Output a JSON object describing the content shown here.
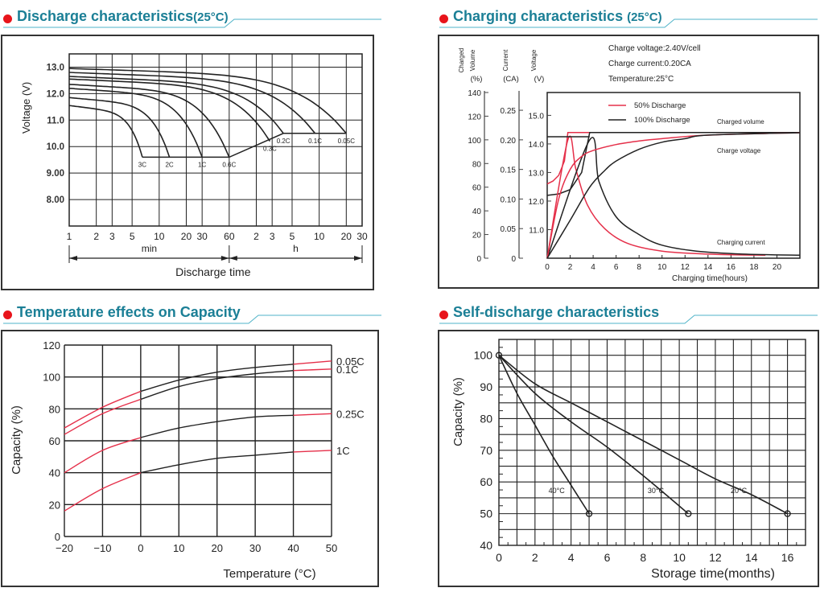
{
  "colors": {
    "title": "#1b7f96",
    "bullet": "#e8141b",
    "curve": "#222222",
    "curve_red": "#e5304a",
    "grid": "#222222"
  },
  "chart_data": [
    {
      "id": "discharge",
      "type": "line",
      "title": "Discharge characteristics",
      "title_suffix": "(25°C)",
      "xlabel": "Discharge time",
      "ylabel": "Voltage (V)",
      "x_scale": "log",
      "x_unit_labels": [
        "min",
        "h"
      ],
      "x_ticks_minutes": [
        1,
        2,
        3,
        5,
        10,
        20,
        30,
        60,
        120,
        180,
        300,
        600,
        1200,
        1800
      ],
      "x_tick_labels": [
        "1",
        "2",
        "3",
        "5",
        "10",
        "20",
        "30",
        "60",
        "2",
        "3",
        "5",
        "10",
        "20",
        "30"
      ],
      "y_ticks": [
        8.0,
        9.0,
        10.0,
        11.0,
        12.0,
        13.0
      ],
      "y_tick_labels": [
        "8.00",
        "9.00",
        "10.0",
        "11.0",
        "12.0",
        "13.0"
      ],
      "ylim": [
        7.0,
        13.5
      ],
      "grid": true,
      "series": [
        {
          "name": "3C",
          "start_v": 11.55,
          "end_time_min": 6.5,
          "cutoff_v": 9.6
        },
        {
          "name": "2C",
          "start_v": 11.85,
          "end_time_min": 13,
          "cutoff_v": 9.6
        },
        {
          "name": "1C",
          "start_v": 12.2,
          "end_time_min": 30,
          "cutoff_v": 9.6
        },
        {
          "name": "0.6C",
          "start_v": 12.35,
          "end_time_min": 60,
          "cutoff_v": 9.6
        },
        {
          "name": "0.3C",
          "start_v": 12.55,
          "end_time_min": 170,
          "cutoff_v": 10.2
        },
        {
          "name": "0.2C",
          "start_v": 12.65,
          "end_time_min": 240,
          "cutoff_v": 10.5
        },
        {
          "name": "0.1C",
          "start_v": 12.8,
          "end_time_min": 540,
          "cutoff_v": 10.5
        },
        {
          "name": "0.05C",
          "start_v": 12.95,
          "end_time_min": 1200,
          "cutoff_v": 10.5
        }
      ]
    },
    {
      "id": "charging",
      "type": "line",
      "title": "Charging characteristics",
      "title_suffix": "(25°C)",
      "xlabel": "Charging time(hours)",
      "x_ticks": [
        0,
        2,
        4,
        6,
        8,
        10,
        12,
        14,
        16,
        18,
        20
      ],
      "xlim": [
        0,
        22
      ],
      "axes": [
        {
          "label": [
            "Charged",
            "Volume"
          ],
          "unit": "(%)",
          "ticks": [
            0,
            20,
            40,
            60,
            80,
            100,
            120,
            140
          ],
          "range": [
            0,
            140
          ]
        },
        {
          "label": [
            "Current"
          ],
          "unit": "(CA)",
          "ticks": [
            0,
            0.05,
            0.1,
            0.15,
            0.2,
            0.25
          ],
          "tick_labels": [
            "0",
            "0.05",
            "0.10",
            "0.15",
            "0.20",
            "0.25"
          ],
          "range": [
            0,
            0.28
          ]
        },
        {
          "label": [
            "Voltage"
          ],
          "unit": "(V)",
          "ticks": [
            11.0,
            12.0,
            13.0,
            14.0,
            15.0
          ],
          "tick_labels": [
            "11.0",
            "12.0",
            "13.0",
            "14.0",
            "15.0"
          ],
          "range": [
            10.0,
            15.8
          ]
        }
      ],
      "conditions": [
        "Charge voltage:2.40V/cell",
        "Charge current:0.20CA",
        "Temperature:25°C"
      ],
      "legend": [
        {
          "name": "50% Discharge",
          "color": "#e5304a"
        },
        {
          "name": "100% Discharge",
          "color": "#222222"
        }
      ],
      "legend_position": "top-left",
      "annotations": [
        "Charged volume",
        "Charge voltage",
        "Charging current"
      ],
      "series": [
        {
          "name": "50% Discharge - voltage",
          "axis": 2,
          "x": [
            0,
            0.5,
            1,
            1.5,
            1.8,
            2,
            22
          ],
          "y": [
            12.6,
            12.7,
            12.9,
            13.4,
            14.4,
            14.4,
            14.4
          ],
          "color": "#e5304a"
        },
        {
          "name": "100% Discharge - voltage",
          "axis": 2,
          "x": [
            0,
            1,
            2,
            3,
            3.4,
            3.7,
            22
          ],
          "y": [
            12.2,
            12.25,
            12.4,
            13.0,
            13.8,
            14.4,
            14.4
          ],
          "color": "#222222"
        },
        {
          "name": "50% Discharge - current",
          "axis": 1,
          "x": [
            0,
            1.8,
            2.5,
            3.5,
            5,
            7,
            10,
            14,
            19
          ],
          "y": [
            0,
            0.2,
            0.15,
            0.09,
            0.05,
            0.025,
            0.012,
            0.007,
            0.005
          ],
          "color": "#e5304a"
        },
        {
          "name": "100% Discharge - current",
          "axis": 1,
          "x": [
            0,
            3.7,
            4.5,
            6,
            8,
            10,
            13,
            17,
            22
          ],
          "y": [
            0,
            0.2,
            0.13,
            0.07,
            0.04,
            0.022,
            0.012,
            0.007,
            0.005
          ],
          "color": "#222222"
        },
        {
          "name": "50% Discharge - charged volume",
          "axis": 0,
          "x": [
            0,
            1,
            2,
            3,
            4,
            6,
            8,
            10,
            14,
            22
          ],
          "y": [
            0,
            50,
            75,
            86,
            91,
            96,
            99,
            101,
            104,
            106
          ],
          "color": "#e5304a"
        },
        {
          "name": "100% Discharge - charged volume",
          "axis": 0,
          "x": [
            0,
            2,
            3.7,
            5,
            6,
            8,
            10,
            12,
            14,
            22
          ],
          "y": [
            0,
            32,
            60,
            74,
            82,
            92,
            98,
            101,
            104,
            106
          ],
          "color": "#222222"
        },
        {
          "name": "Charge voltage reference",
          "axis": 2,
          "x": [
            0,
            3.7
          ],
          "y": [
            14.25,
            14.25
          ],
          "color": "#222222"
        }
      ]
    },
    {
      "id": "temperature",
      "type": "line",
      "title": "Temperature effects on Capacity",
      "xlabel": "Temperature (°C)",
      "ylabel": "Capacity (%)",
      "x": [
        -20,
        -10,
        0,
        10,
        20,
        30,
        40,
        50
      ],
      "x_ticks": [
        -20,
        -10,
        0,
        10,
        20,
        30,
        40,
        50
      ],
      "y_ticks": [
        0,
        20,
        40,
        60,
        80,
        100,
        120
      ],
      "xlim": [
        -20,
        50
      ],
      "ylim": [
        0,
        120
      ],
      "grid": true,
      "series": [
        {
          "name": "0.05C",
          "values": [
            68,
            81,
            91,
            98,
            103,
            106,
            108,
            110
          ]
        },
        {
          "name": "0.1C",
          "values": [
            64,
            77,
            86,
            94,
            99,
            102,
            104,
            105
          ]
        },
        {
          "name": "0.25C",
          "values": [
            40,
            54,
            62,
            68,
            72,
            75,
            76,
            77
          ]
        },
        {
          "name": "1C",
          "values": [
            16,
            30,
            40,
            45,
            49,
            51,
            53,
            54
          ]
        }
      ],
      "note": "Segments below 0°C and above 40°C are drawn in red"
    },
    {
      "id": "selfdischarge",
      "type": "line",
      "title": "Self-discharge characteristics",
      "xlabel": "Storage time(months)",
      "ylabel": "Capacity (%)",
      "x_ticks": [
        0,
        2,
        4,
        6,
        8,
        10,
        12,
        14,
        16
      ],
      "y_ticks": [
        40,
        50,
        60,
        70,
        80,
        90,
        100
      ],
      "xlim": [
        0,
        17
      ],
      "ylim": [
        40,
        105
      ],
      "grid": true,
      "series": [
        {
          "name": "40°C",
          "x": [
            0,
            1,
            2,
            3,
            4,
            5
          ],
          "y": [
            100,
            88,
            78,
            68,
            59,
            50
          ]
        },
        {
          "name": "30°C",
          "x": [
            0,
            2,
            4,
            6,
            8,
            10.5
          ],
          "y": [
            100,
            88,
            79,
            71,
            62,
            50
          ]
        },
        {
          "name": "20°C",
          "x": [
            0,
            2,
            4,
            6,
            8,
            10,
            12,
            14,
            16
          ],
          "y": [
            100,
            91,
            85,
            79,
            73,
            67,
            61,
            56,
            50
          ]
        }
      ]
    }
  ]
}
